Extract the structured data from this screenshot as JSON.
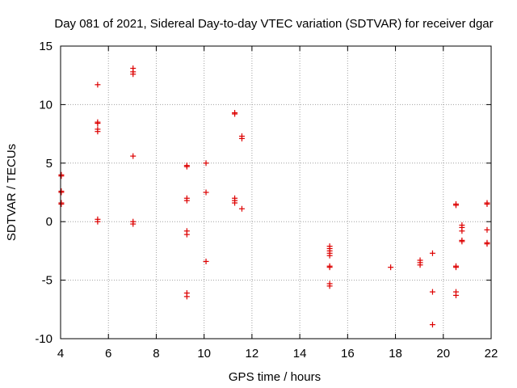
{
  "chart_data": {
    "type": "scatter",
    "title": "Day 081 of 2021, Sidereal Day-to-day VTEC variation (SDTVAR) for receiver dgar",
    "xlabel": "GPS time / hours",
    "ylabel": "SDTVAR / TECUs",
    "xlim": [
      4,
      22
    ],
    "ylim": [
      -10,
      15
    ],
    "xticks": [
      4,
      6,
      8,
      10,
      12,
      14,
      16,
      18,
      20,
      22
    ],
    "yticks": [
      -10,
      -5,
      0,
      5,
      10,
      15
    ],
    "grid": true,
    "marker": "+",
    "color": "#dd0000",
    "series": [
      {
        "name": "SDTVAR",
        "points": [
          [
            4.03,
            4.0
          ],
          [
            4.03,
            3.9
          ],
          [
            4.03,
            2.6
          ],
          [
            4.03,
            2.5
          ],
          [
            4.03,
            1.6
          ],
          [
            4.03,
            1.5
          ],
          [
            5.55,
            11.7
          ],
          [
            5.55,
            8.5
          ],
          [
            5.55,
            8.4
          ],
          [
            5.55,
            7.9
          ],
          [
            5.55,
            7.7
          ],
          [
            5.55,
            0.2
          ],
          [
            5.55,
            0.0
          ],
          [
            7.03,
            13.1
          ],
          [
            7.03,
            12.8
          ],
          [
            7.03,
            12.6
          ],
          [
            7.03,
            5.6
          ],
          [
            7.03,
            0.0
          ],
          [
            7.03,
            -0.2
          ],
          [
            9.28,
            4.8
          ],
          [
            9.28,
            4.7
          ],
          [
            9.28,
            2.0
          ],
          [
            9.28,
            1.8
          ],
          [
            9.28,
            -0.8
          ],
          [
            9.28,
            -1.1
          ],
          [
            9.28,
            -6.1
          ],
          [
            9.28,
            -6.4
          ],
          [
            10.08,
            5.0
          ],
          [
            10.08,
            2.5
          ],
          [
            10.08,
            -3.4
          ],
          [
            11.28,
            9.3
          ],
          [
            11.28,
            9.2
          ],
          [
            11.28,
            2.0
          ],
          [
            11.28,
            1.8
          ],
          [
            11.28,
            1.6
          ],
          [
            11.58,
            7.3
          ],
          [
            11.58,
            7.1
          ],
          [
            11.58,
            1.1
          ],
          [
            15.25,
            -2.1
          ],
          [
            15.25,
            -2.3
          ],
          [
            15.25,
            -2.5
          ],
          [
            15.25,
            -2.7
          ],
          [
            15.25,
            -2.9
          ],
          [
            15.25,
            -3.8
          ],
          [
            15.25,
            -3.9
          ],
          [
            15.25,
            -5.3
          ],
          [
            15.25,
            -5.5
          ],
          [
            17.8,
            -3.9
          ],
          [
            19.03,
            -3.3
          ],
          [
            19.03,
            -3.5
          ],
          [
            19.03,
            -3.7
          ],
          [
            19.55,
            -2.7
          ],
          [
            19.55,
            -6.0
          ],
          [
            19.55,
            -8.8
          ],
          [
            20.53,
            1.5
          ],
          [
            20.53,
            1.4
          ],
          [
            20.53,
            -3.8
          ],
          [
            20.53,
            -3.9
          ],
          [
            20.53,
            -6.0
          ],
          [
            20.53,
            -6.3
          ],
          [
            20.78,
            -0.3
          ],
          [
            20.78,
            -0.5
          ],
          [
            20.78,
            -0.8
          ],
          [
            20.78,
            -1.6
          ],
          [
            20.78,
            -1.7
          ],
          [
            21.83,
            1.6
          ],
          [
            21.83,
            1.5
          ],
          [
            21.83,
            -0.7
          ],
          [
            21.83,
            -1.8
          ],
          [
            21.83,
            -1.9
          ]
        ]
      }
    ]
  }
}
